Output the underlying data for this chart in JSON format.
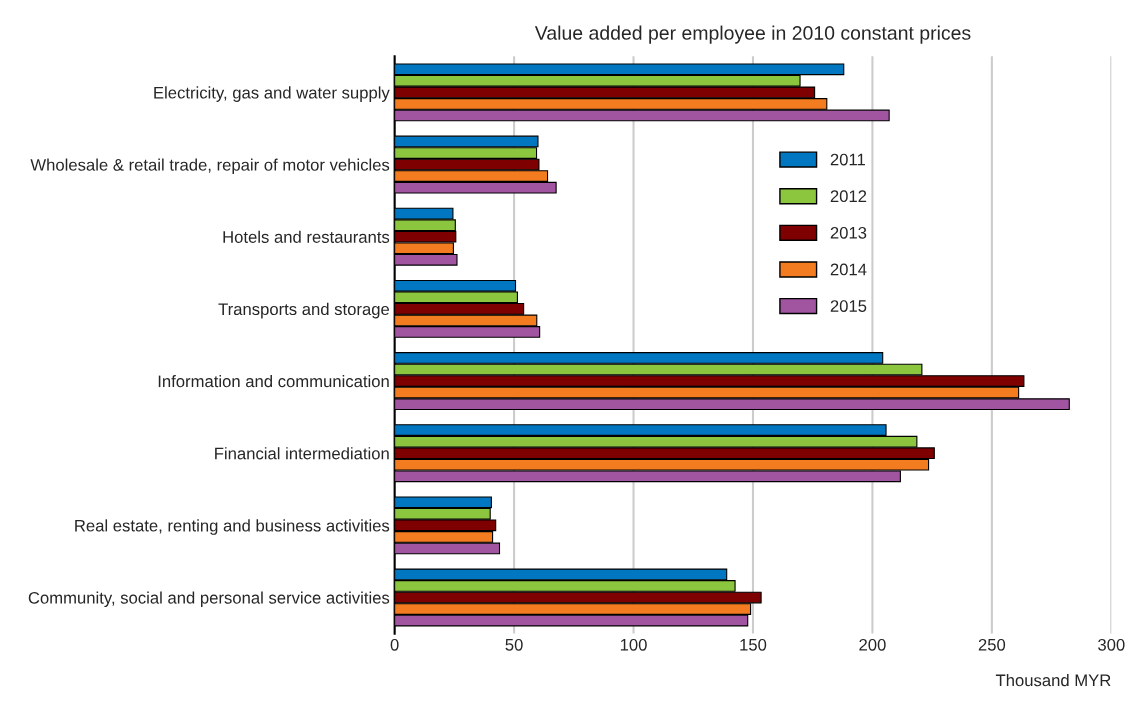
{
  "chart_data": {
    "type": "bar",
    "orientation": "horizontal",
    "title": "Value added per employee in 2010 constant prices",
    "xlabel": "Thousand MYR",
    "categories": [
      "Electricity, gas and water supply",
      "Wholesale & retail trade, repair of motor vehicles",
      "Hotels and restaurants",
      "Transports and storage",
      "Information and communication",
      "Financial intermediation",
      "Real estate, renting and business activities",
      "Community, social and personal service activities"
    ],
    "series": [
      {
        "name": "2011",
        "color": "#0077c0",
        "values": [
          188,
          60,
          24.4,
          50.6,
          204.3,
          205.7,
          40.5,
          139
        ]
      },
      {
        "name": "2012",
        "color": "#8cc63f",
        "values": [
          169.7,
          59.4,
          25.4,
          51.4,
          220.7,
          218.6,
          40,
          142.5
        ]
      },
      {
        "name": "2013",
        "color": "#7f0000",
        "values": [
          175.8,
          60.4,
          25.6,
          54,
          263.4,
          225.9,
          42.3,
          153.4
        ]
      },
      {
        "name": "2014",
        "color": "#f47c20",
        "values": [
          180.9,
          64,
          24.6,
          59.5,
          261.2,
          223.5,
          41,
          149
        ]
      },
      {
        "name": "2015",
        "color": "#a155a0",
        "values": [
          207,
          67.6,
          26.1,
          60.7,
          282.4,
          211.7,
          43.9,
          147.8
        ]
      }
    ],
    "xlim": [
      0,
      300
    ],
    "xticks": [
      0,
      50,
      100,
      150,
      200,
      250,
      300
    ],
    "grid": "x",
    "legend": "top right"
  }
}
